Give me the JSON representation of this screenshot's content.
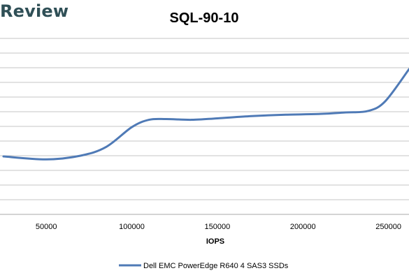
{
  "header": {
    "logo_text": "Review"
  },
  "colors": {
    "series": "#4f7ab6",
    "grid": "#c4c4c4",
    "logo": "#2f4f56"
  },
  "chart_data": {
    "type": "line",
    "title": "SQL-90-10",
    "xlabel": "IOPS",
    "ylabel": "",
    "xlim": [
      25000,
      262000
    ],
    "ylim": [
      0,
      12
    ],
    "x_ticks": [
      50000,
      100000,
      150000,
      200000,
      250000
    ],
    "x_tick_labels": [
      "50000",
      "100000",
      "150000",
      "200000",
      "250000"
    ],
    "y_tick_count": 12,
    "y_tick_labels_visible": false,
    "grid": "horizontal",
    "legend": "bottom-center",
    "series": [
      {
        "name": "Dell EMC PowerEdge R640 4 SAS3 SSDs",
        "color": "#4f7ab6",
        "x": [
          25000,
          50000,
          70000,
          85000,
          100000,
          110000,
          120000,
          135000,
          150000,
          170000,
          190000,
          210000,
          225000,
          238000,
          248000,
          262000
        ],
        "y": [
          3.95,
          3.75,
          4.0,
          4.6,
          5.95,
          6.45,
          6.5,
          6.45,
          6.55,
          6.7,
          6.8,
          6.85,
          6.95,
          7.05,
          7.7,
          9.9
        ]
      }
    ]
  }
}
